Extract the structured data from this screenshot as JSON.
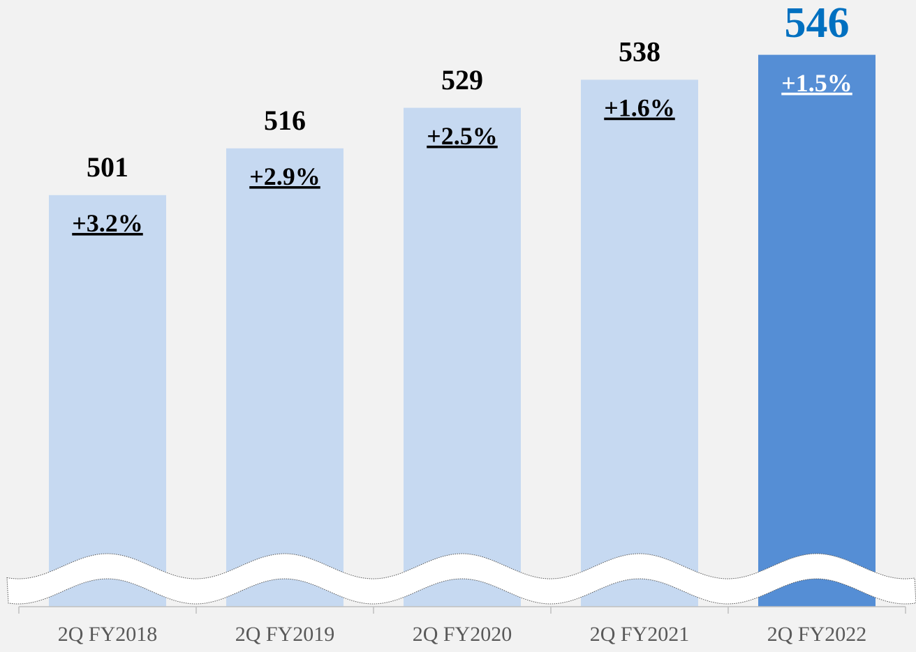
{
  "chart_data": {
    "type": "bar",
    "categories": [
      "2Q FY2018",
      "2Q FY2019",
      "2Q FY2020",
      "2Q FY2021",
      "2Q FY2022"
    ],
    "values": [
      501,
      516,
      529,
      538,
      546
    ],
    "growth_labels": [
      "+3.2%",
      "+2.9%",
      "+2.5%",
      "+1.6%",
      "+1.5%"
    ],
    "colors": [
      "#c6d9f1",
      "#c6d9f1",
      "#c6d9f1",
      "#c6d9f1",
      "#558ed5"
    ],
    "highlight_label_color": "#0070c0",
    "ylim": [
      369,
      560
    ],
    "grid": false
  }
}
